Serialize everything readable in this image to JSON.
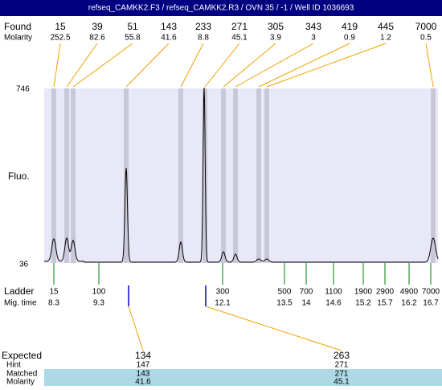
{
  "header": {
    "title": "refseq_CAMKK2.F3 / refseq_CAMKK2.R3 / OVN 35 / -1 / Well ID 1036693"
  },
  "found": {
    "label": "Found",
    "sublabel": "Molarity",
    "peaks": [
      {
        "size": "15",
        "molarity": "252.5"
      },
      {
        "size": "39",
        "molarity": "82.6"
      },
      {
        "size": "51",
        "molarity": "55.8"
      },
      {
        "size": "143",
        "molarity": "41.6"
      },
      {
        "size": "233",
        "molarity": "8.8"
      },
      {
        "size": "271",
        "molarity": "45.1"
      },
      {
        "size": "305",
        "molarity": "3.9"
      },
      {
        "size": "343",
        "molarity": "3"
      },
      {
        "size": "419",
        "molarity": "0.9"
      },
      {
        "size": "445",
        "molarity": "1.2"
      },
      {
        "size": "7000",
        "molarity": "0.5"
      }
    ]
  },
  "axis": {
    "top": "746",
    "bottom": "36",
    "label": "Fluo."
  },
  "ladder": {
    "label": "Ladder",
    "sublabel": "Mig. time",
    "bands": [
      {
        "size": "15",
        "time": "8.3"
      },
      {
        "size": "100",
        "time": "9.3"
      },
      {
        "size": "300",
        "time": "12.1"
      },
      {
        "size": "500",
        "time": "13.5"
      },
      {
        "size": "700",
        "time": "14"
      },
      {
        "size": "1100",
        "time": "14.6"
      },
      {
        "size": "1900",
        "time": "15.2"
      },
      {
        "size": "2900",
        "time": "15.7"
      },
      {
        "size": "4900",
        "time": "16.2"
      },
      {
        "size": "7000",
        "time": "16.7"
      }
    ]
  },
  "table": {
    "rows": [
      {
        "label": "Expected",
        "values": [
          "134",
          "263"
        ]
      },
      {
        "label": "Hint",
        "values": [
          "147",
          "271"
        ]
      },
      {
        "label": "Matched",
        "values": [
          "143",
          "271"
        ]
      },
      {
        "label": "Molarity",
        "values": [
          "41.6",
          "45.1"
        ]
      }
    ]
  }
}
